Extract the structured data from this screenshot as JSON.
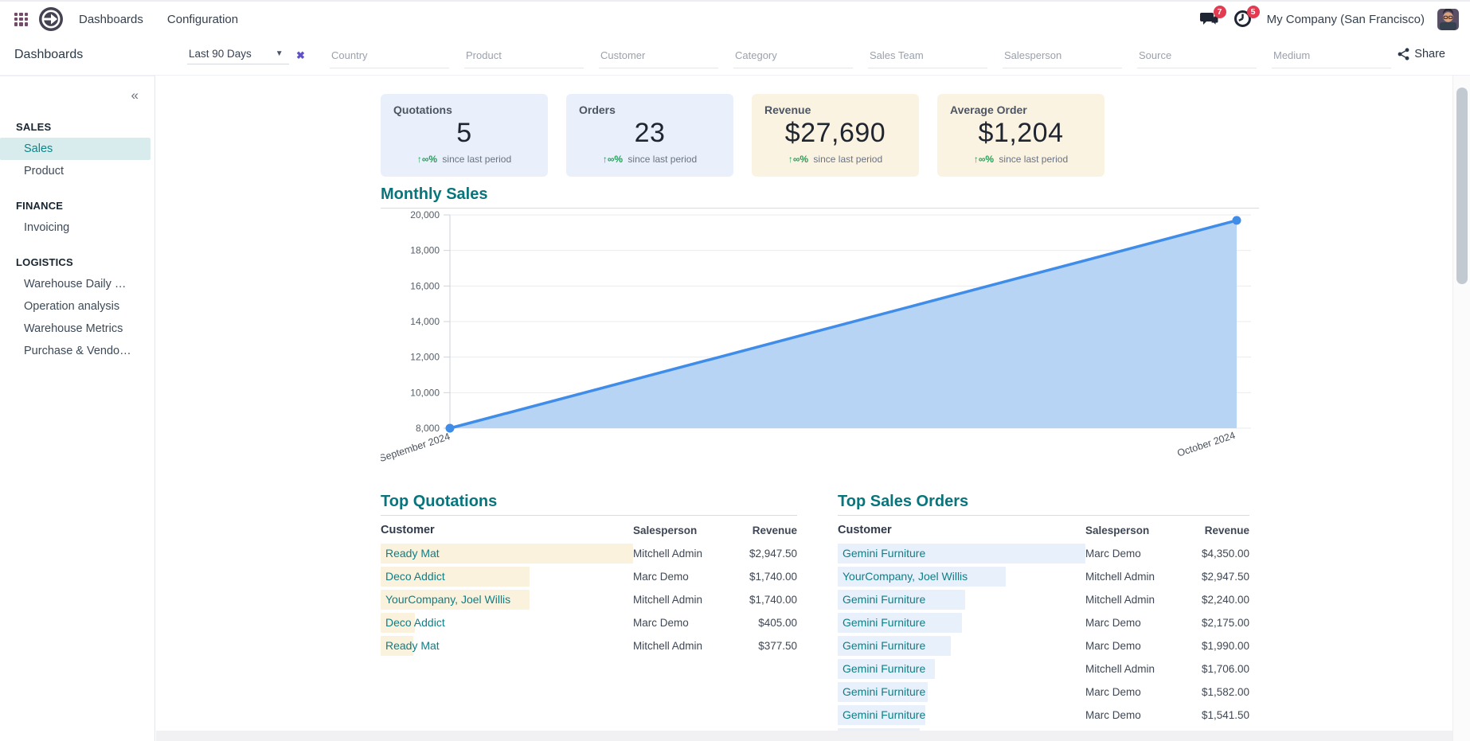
{
  "navbar": {
    "menus": [
      "Dashboards",
      "Configuration"
    ],
    "messages_badge": "7",
    "activities_badge": "5",
    "company": "My Company (San Francisco)"
  },
  "control_panel": {
    "title": "Dashboards",
    "period_value": "Last 90 Days",
    "filters": [
      "Country",
      "Product",
      "Customer",
      "Category",
      "Sales Team",
      "Salesperson",
      "Source",
      "Medium"
    ],
    "share_label": "Share"
  },
  "sidebar": {
    "collapse_icon": "«",
    "sections": [
      {
        "title": "SALES",
        "items": [
          {
            "label": "Sales",
            "active": true
          },
          {
            "label": "Product",
            "active": false
          }
        ]
      },
      {
        "title": "FINANCE",
        "items": [
          {
            "label": "Invoicing",
            "active": false
          }
        ]
      },
      {
        "title": "LOGISTICS",
        "items": [
          {
            "label": "Warehouse Daily …",
            "active": false
          },
          {
            "label": "Operation analysis",
            "active": false
          },
          {
            "label": "Warehouse Metrics",
            "active": false
          },
          {
            "label": "Purchase & Vendo…",
            "active": false
          }
        ]
      }
    ]
  },
  "kpis": [
    {
      "label": "Quotations",
      "value": "5",
      "delta": "↑∞%",
      "delta_note": "since last period",
      "theme": "blue"
    },
    {
      "label": "Orders",
      "value": "23",
      "delta": "↑∞%",
      "delta_note": "since last period",
      "theme": "blue"
    },
    {
      "label": "Revenue",
      "value": "$27,690",
      "delta": "↑∞%",
      "delta_note": "since last period",
      "theme": "cream"
    },
    {
      "label": "Average Order",
      "value": "$1,204",
      "delta": "↑∞%",
      "delta_note": "since last period",
      "theme": "cream"
    }
  ],
  "chart_data": {
    "type": "area",
    "title": "Monthly Sales",
    "x": [
      "September 2024",
      "October 2024"
    ],
    "series": [
      {
        "name": "Sales",
        "values": [
          8000,
          19690
        ]
      }
    ],
    "ylim": [
      8000,
      20000
    ],
    "yticks": [
      "8,000",
      "10,000",
      "12,000",
      "14,000",
      "16,000",
      "18,000",
      "20,000"
    ],
    "grid": true,
    "legend": "none",
    "line_color": "#3f8de9",
    "fill_color": "#b7d4f4"
  },
  "tables": [
    {
      "title": "Top Quotations",
      "columns": [
        "Customer",
        "Salesperson",
        "Revenue"
      ],
      "bar_color": "#fbf2de",
      "rows": [
        {
          "customer": "Ready Mat",
          "salesperson": "Mitchell Admin",
          "revenue": "$2,947.50",
          "revenue_value": 2947.5
        },
        {
          "customer": "Deco Addict",
          "salesperson": "Marc Demo",
          "revenue": "$1,740.00",
          "revenue_value": 1740
        },
        {
          "customer": "YourCompany, Joel Willis",
          "salesperson": "Mitchell Admin",
          "revenue": "$1,740.00",
          "revenue_value": 1740
        },
        {
          "customer": "Deco Addict",
          "salesperson": "Marc Demo",
          "revenue": "$405.00",
          "revenue_value": 405
        },
        {
          "customer": "Ready Mat",
          "salesperson": "Mitchell Admin",
          "revenue": "$377.50",
          "revenue_value": 377.5
        }
      ]
    },
    {
      "title": "Top Sales Orders",
      "columns": [
        "Customer",
        "Salesperson",
        "Revenue"
      ],
      "bar_color": "#e8f0fc",
      "rows": [
        {
          "customer": "Gemini Furniture",
          "salesperson": "Marc Demo",
          "revenue": "$4,350.00",
          "revenue_value": 4350
        },
        {
          "customer": "YourCompany, Joel Willis",
          "salesperson": "Mitchell Admin",
          "revenue": "$2,947.50",
          "revenue_value": 2947.5
        },
        {
          "customer": "Gemini Furniture",
          "salesperson": "Mitchell Admin",
          "revenue": "$2,240.00",
          "revenue_value": 2240
        },
        {
          "customer": "Gemini Furniture",
          "salesperson": "Marc Demo",
          "revenue": "$2,175.00",
          "revenue_value": 2175
        },
        {
          "customer": "Gemini Furniture",
          "salesperson": "Marc Demo",
          "revenue": "$1,990.00",
          "revenue_value": 1990
        },
        {
          "customer": "Gemini Furniture",
          "salesperson": "Mitchell Admin",
          "revenue": "$1,706.00",
          "revenue_value": 1706
        },
        {
          "customer": "Gemini Furniture",
          "salesperson": "Marc Demo",
          "revenue": "$1,582.00",
          "revenue_value": 1582
        },
        {
          "customer": "Gemini Furniture",
          "salesperson": "Marc Demo",
          "revenue": "$1,541.50",
          "revenue_value": 1541.5
        }
      ],
      "partial_row_bar_ratio": 0.33
    }
  ]
}
